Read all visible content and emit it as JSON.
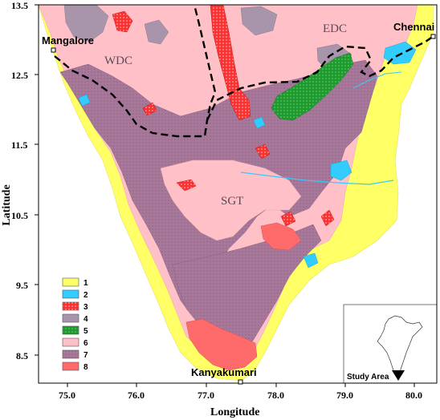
{
  "axes": {
    "xlabel": "Longitude",
    "ylabel": "Latitude",
    "x_ticks": [
      "75.0",
      "76.0",
      "77.0",
      "78.0",
      "79.0",
      "80.0"
    ],
    "y_ticks": [
      "13.5",
      "12.5",
      "11.5",
      "10.5",
      "9.5",
      "8.5"
    ]
  },
  "regions": {
    "wdc": "WDC",
    "edc": "EDC",
    "sgt": "SGT"
  },
  "cities": {
    "mangalore": "Mangalore",
    "chennai": "Chennai",
    "kanyakumari": "Kanyakumari"
  },
  "legend": {
    "items": [
      {
        "label": "1",
        "color": "#ffff66"
      },
      {
        "label": "2",
        "color": "#33ccff"
      },
      {
        "label": "3",
        "color": "#ff2222",
        "pattern": "dots"
      },
      {
        "label": "4",
        "color": "#a894ab"
      },
      {
        "label": "5",
        "color": "#22aa33",
        "pattern": "dots"
      },
      {
        "label": "6",
        "color": "#ffc0c8"
      },
      {
        "label": "7",
        "color": "#a87a9a",
        "pattern": "dots"
      },
      {
        "label": "8",
        "color": "#ff6a6a"
      }
    ]
  },
  "inset": {
    "label": "Study Area"
  }
}
